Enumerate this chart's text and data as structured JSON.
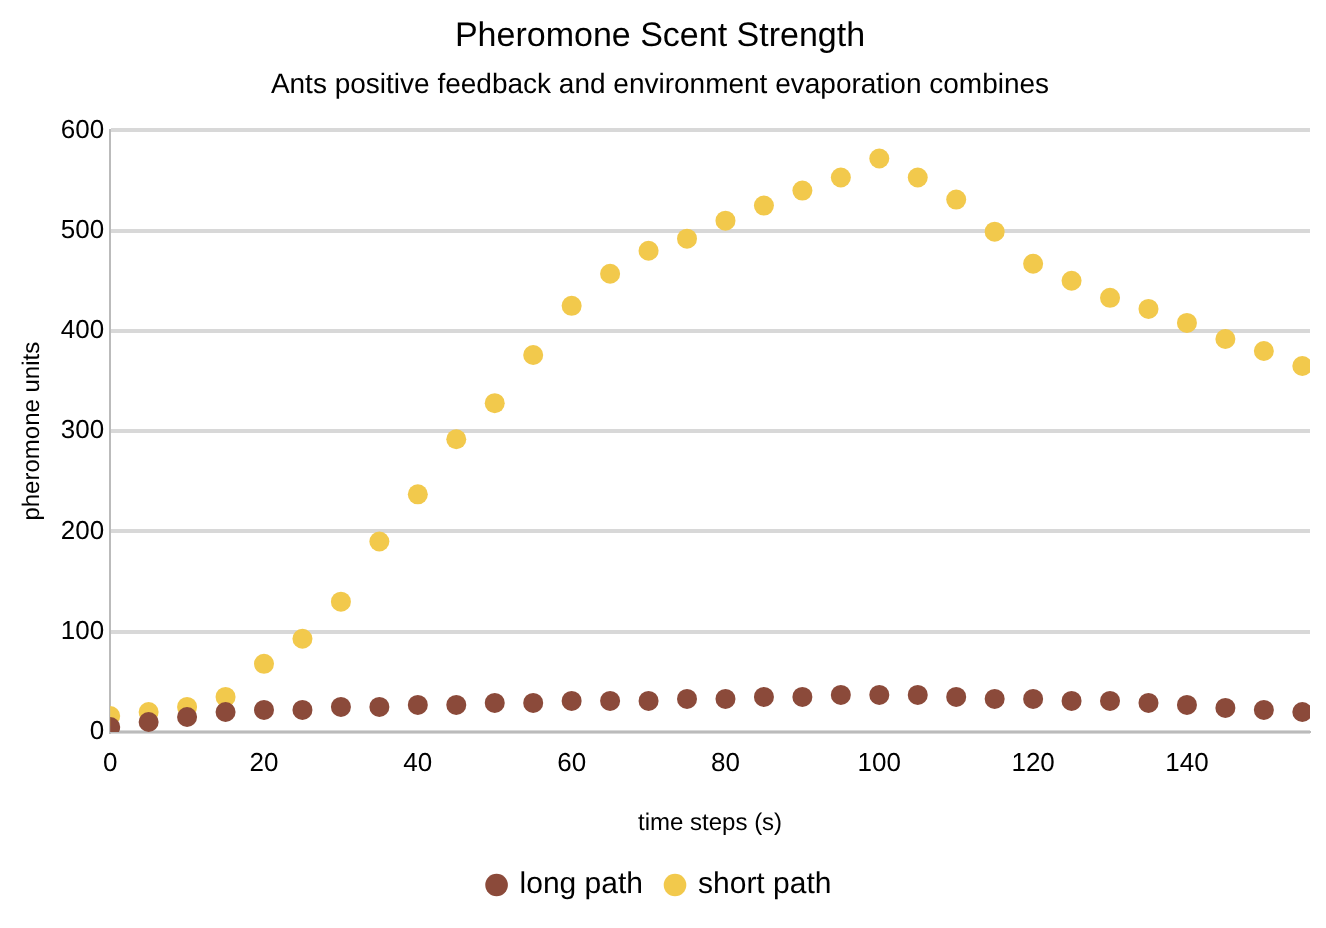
{
  "chart_data": {
    "type": "scatter",
    "title": "Pheromone Scent Strength",
    "subtitle": "Ants positive feedback and environment evaporation combines",
    "xlabel": "time steps (s)",
    "ylabel": "pheromone units",
    "x": [
      0,
      5,
      10,
      15,
      20,
      25,
      30,
      35,
      40,
      45,
      50,
      55,
      60,
      65,
      70,
      75,
      80,
      85,
      90,
      95,
      100,
      105,
      110,
      115,
      120,
      125,
      130,
      135,
      140,
      145,
      150,
      155
    ],
    "series": [
      {
        "name": "long path",
        "color": "#8b4a3a",
        "values": [
          5,
          10,
          15,
          20,
          22,
          22,
          25,
          25,
          27,
          27,
          29,
          29,
          31,
          31,
          31,
          33,
          33,
          35,
          35,
          37,
          37,
          37,
          35,
          33,
          33,
          31,
          31,
          29,
          27,
          24,
          22,
          20
        ]
      },
      {
        "name": "short path",
        "color": "#f2c94c",
        "values": [
          16,
          20,
          25,
          35,
          68,
          93,
          130,
          190,
          237,
          292,
          328,
          376,
          425,
          457,
          480,
          492,
          510,
          525,
          540,
          553,
          572,
          553,
          531,
          499,
          467,
          450,
          433,
          422,
          408,
          392,
          380,
          365
        ]
      }
    ],
    "xlim": [
      0,
      156
    ],
    "xticks": [
      0,
      20,
      40,
      60,
      80,
      100,
      120,
      140
    ],
    "ylim": [
      0,
      600
    ],
    "yticks": [
      0,
      100,
      200,
      300,
      400,
      500,
      600
    ],
    "grid": "y",
    "legend": "bottom",
    "marker": "circle"
  }
}
